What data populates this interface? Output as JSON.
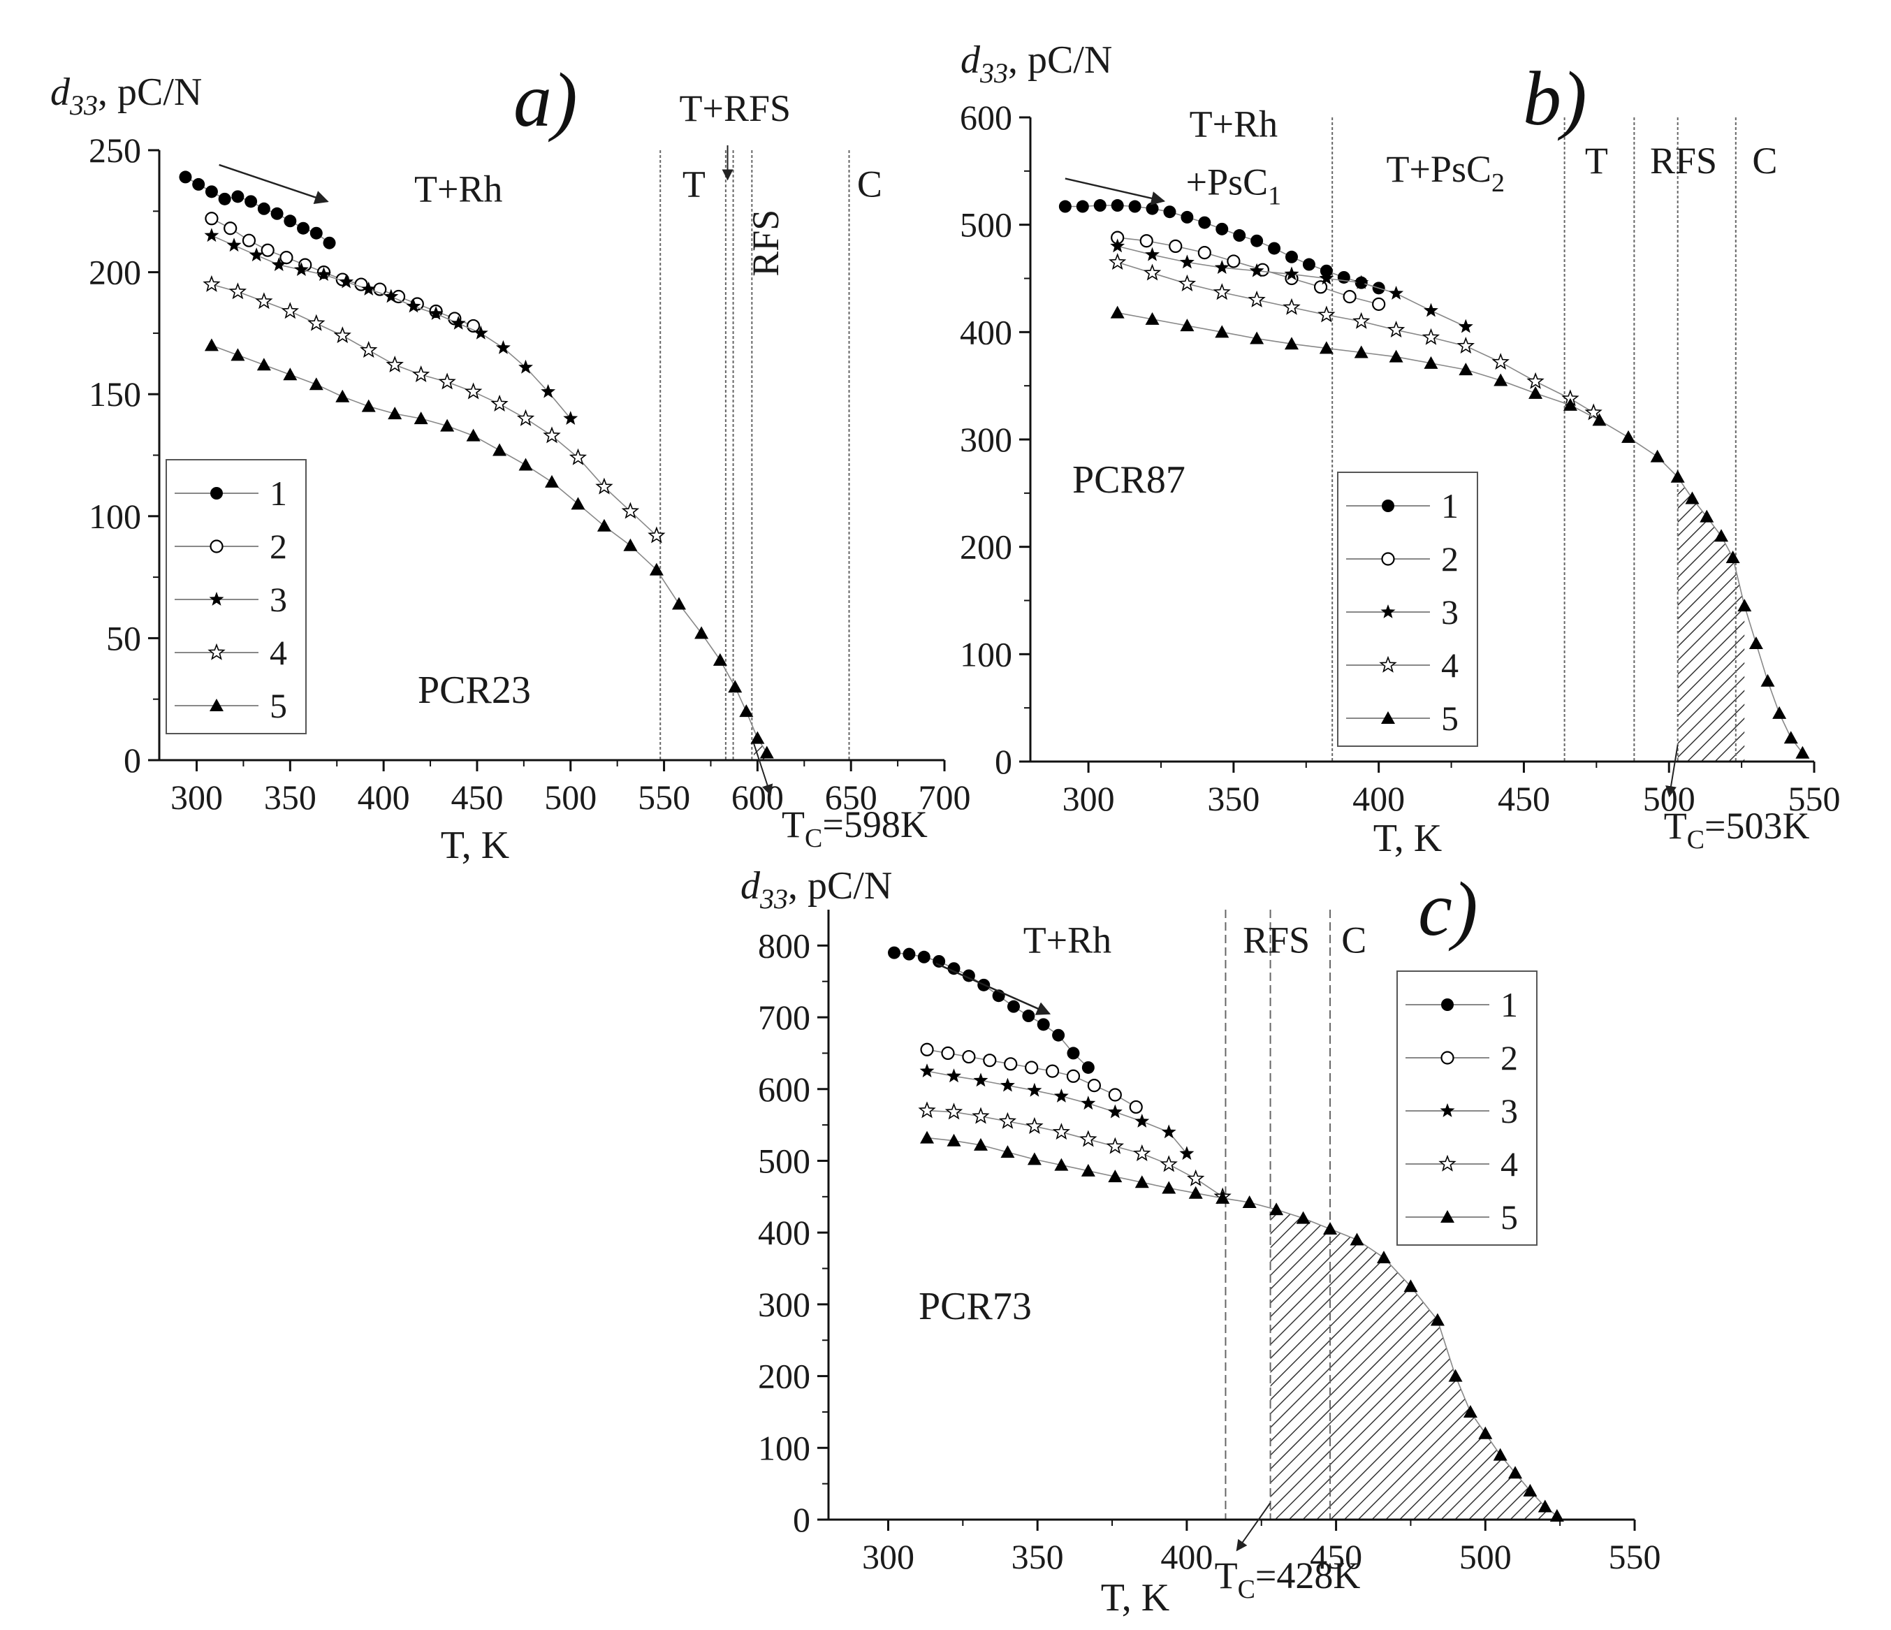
{
  "chart_data": [
    {
      "id": "a",
      "type": "scatter",
      "panel_label": "a)",
      "sample": "PCR23",
      "ylabel_sym": "d",
      "ylabel_sub": "33",
      "ylabel_unit": ", pC/N",
      "xlabel": "T, K",
      "xlim": [
        280,
        700
      ],
      "ylim": [
        0,
        250
      ],
      "xticks": [
        300,
        350,
        400,
        450,
        500,
        550,
        600,
        650,
        700
      ],
      "yticks": [
        0,
        50,
        100,
        150,
        200,
        250
      ],
      "phase_labels": [
        {
          "text": "T+Rh",
          "x": 440,
          "y": 229
        },
        {
          "text": "T",
          "x": 566,
          "y": 231
        },
        {
          "text": "T+RFS",
          "x": 588,
          "y": 262
        },
        {
          "text": "RFS",
          "x": 611,
          "y": 212,
          "rotated": true
        },
        {
          "text": "C",
          "x": 660,
          "y": 231
        }
      ],
      "phase_lines": [
        548,
        583,
        587,
        597,
        649
      ],
      "hatch": [
        598,
        612
      ],
      "tc_label": {
        "main": "T",
        "sub": "C",
        "rest": "=598K",
        "x": 598
      },
      "arrow": {
        "from": [
          312,
          244
        ],
        "to": [
          370,
          229
        ]
      },
      "legend_entries": [
        "1",
        "2",
        "3",
        "4",
        "5"
      ],
      "series": [
        {
          "name": "1",
          "marker": "circle-filled",
          "x": [
            294,
            301,
            308,
            315,
            322,
            329,
            336,
            343,
            350,
            357,
            364,
            371
          ],
          "y": [
            239,
            236,
            233,
            230,
            231,
            229,
            226,
            224,
            221,
            218,
            216,
            212
          ]
        },
        {
          "name": "2",
          "marker": "circle-open",
          "x": [
            308,
            318,
            328,
            338,
            348,
            358,
            368,
            378,
            388,
            398,
            408,
            418,
            428,
            438,
            448
          ],
          "y": [
            222,
            218,
            213,
            209,
            206,
            203,
            200,
            197,
            195,
            193,
            190,
            187,
            184,
            181,
            178
          ]
        },
        {
          "name": "3",
          "marker": "star-filled",
          "x": [
            308,
            320,
            332,
            344,
            356,
            368,
            380,
            392,
            404,
            416,
            428,
            440,
            452,
            464,
            476,
            488,
            500
          ],
          "y": [
            215,
            211,
            207,
            203,
            201,
            199,
            196,
            193,
            190,
            186,
            183,
            179,
            175,
            169,
            161,
            151,
            140
          ]
        },
        {
          "name": "4",
          "marker": "star-open",
          "x": [
            308,
            322,
            336,
            350,
            364,
            378,
            392,
            406,
            420,
            434,
            448,
            462,
            476,
            490,
            504,
            518,
            532,
            546
          ],
          "y": [
            195,
            192,
            188,
            184,
            179,
            174,
            168,
            162,
            158,
            155,
            151,
            146,
            140,
            133,
            124,
            112,
            102,
            92
          ]
        },
        {
          "name": "5",
          "marker": "triangle-filled",
          "x": [
            308,
            322,
            336,
            350,
            364,
            378,
            392,
            406,
            420,
            434,
            448,
            462,
            476,
            490,
            504,
            518,
            532,
            546,
            558,
            570,
            580,
            588,
            594,
            600,
            605
          ],
          "y": [
            170,
            166,
            162,
            158,
            154,
            149,
            145,
            142,
            140,
            137,
            133,
            127,
            121,
            114,
            105,
            96,
            88,
            78,
            64,
            52,
            41,
            30,
            20,
            9,
            3
          ]
        }
      ]
    },
    {
      "id": "b",
      "type": "scatter",
      "panel_label": "b)",
      "sample": "PCR87",
      "ylabel_sym": "d",
      "ylabel_sub": "33",
      "ylabel_unit": ", pC/N",
      "xlabel": "T, K",
      "xlim": [
        280,
        550
      ],
      "ylim": [
        0,
        600
      ],
      "xticks": [
        300,
        350,
        400,
        450,
        500,
        550
      ],
      "yticks": [
        0,
        100,
        200,
        300,
        400,
        500,
        600
      ],
      "phase_labels": [
        {
          "text": "T+Rh",
          "x": 350,
          "y": 582
        },
        {
          "text": "+PsC1",
          "x": 350,
          "y": 528,
          "main": "+PsC",
          "sub": "1"
        },
        {
          "text": "T+PsC2",
          "x": 423,
          "y": 540,
          "main": "T+PsC",
          "sub": "2"
        },
        {
          "text": "T",
          "x": 475,
          "y": 548
        },
        {
          "text": "RFS",
          "x": 505,
          "y": 548
        },
        {
          "text": "C",
          "x": 533,
          "y": 548
        }
      ],
      "phase_lines": [
        384,
        464,
        488,
        503,
        523
      ],
      "hatch": [
        503,
        528
      ],
      "tc_label": {
        "main": "T",
        "sub": "C",
        "rest": "=503K",
        "x": 503
      },
      "arrow": {
        "from": [
          292,
          543
        ],
        "to": [
          326,
          522
        ]
      },
      "legend_entries": [
        "1",
        "2",
        "3",
        "4",
        "5"
      ],
      "series": [
        {
          "name": "1",
          "marker": "circle-filled",
          "x": [
            292,
            298,
            304,
            310,
            316,
            322,
            328,
            334,
            340,
            346,
            352,
            358,
            364,
            370,
            376,
            382,
            388,
            394,
            400
          ],
          "y": [
            517,
            517,
            518,
            518,
            517,
            515,
            512,
            507,
            502,
            496,
            490,
            485,
            478,
            470,
            463,
            457,
            451,
            446,
            441
          ]
        },
        {
          "name": "2",
          "marker": "circle-open",
          "x": [
            310,
            320,
            330,
            340,
            350,
            360,
            370,
            380,
            390,
            400
          ],
          "y": [
            488,
            485,
            480,
            474,
            466,
            458,
            450,
            442,
            433,
            426
          ]
        },
        {
          "name": "3",
          "marker": "star-filled",
          "x": [
            310,
            322,
            334,
            346,
            358,
            370,
            382,
            394,
            406,
            418,
            430
          ],
          "y": [
            480,
            472,
            465,
            460,
            457,
            454,
            450,
            446,
            436,
            420,
            405
          ]
        },
        {
          "name": "4",
          "marker": "star-open",
          "x": [
            310,
            322,
            334,
            346,
            358,
            370,
            382,
            394,
            406,
            418,
            430,
            442,
            454,
            466,
            474
          ],
          "y": [
            465,
            455,
            445,
            437,
            430,
            423,
            416,
            410,
            402,
            395,
            387,
            372,
            354,
            338,
            325
          ]
        },
        {
          "name": "5",
          "marker": "triangle-filled",
          "x": [
            310,
            322,
            334,
            346,
            358,
            370,
            382,
            394,
            406,
            418,
            430,
            442,
            454,
            466,
            476,
            486,
            496,
            503,
            508,
            513,
            518,
            522,
            526,
            530,
            534,
            538,
            542,
            546
          ],
          "y": [
            418,
            412,
            406,
            400,
            394,
            389,
            385,
            381,
            377,
            371,
            365,
            355,
            343,
            332,
            318,
            302,
            284,
            265,
            245,
            228,
            210,
            190,
            145,
            110,
            75,
            45,
            22,
            8
          ]
        }
      ]
    },
    {
      "id": "c",
      "type": "scatter",
      "panel_label": "c)",
      "sample": "PCR73",
      "ylabel_sym": "d",
      "ylabel_sub": "33",
      "ylabel_unit": ", pC/N",
      "xlabel": "T, K",
      "xlim": [
        280,
        550
      ],
      "ylim": [
        0,
        850
      ],
      "xticks": [
        300,
        350,
        400,
        450,
        500,
        550
      ],
      "yticks": [
        0,
        100,
        200,
        300,
        400,
        500,
        600,
        700,
        800
      ],
      "phase_labels": [
        {
          "text": "T+Rh",
          "x": 360,
          "y": 790
        },
        {
          "text": "RFS",
          "x": 430,
          "y": 790
        },
        {
          "text": "C",
          "x": 456,
          "y": 790
        }
      ],
      "phase_lines": [
        413,
        428,
        448
      ],
      "hatch": [
        428,
        524
      ],
      "tc_label": {
        "main": "T",
        "sub": "C",
        "rest": "=428K",
        "x": 428
      },
      "arrow": {
        "from": [
          316,
          775
        ],
        "to": [
          354,
          705
        ]
      },
      "legend_entries": [
        "1",
        "2",
        "3",
        "4",
        "5"
      ],
      "series": [
        {
          "name": "1",
          "marker": "circle-filled",
          "x": [
            302,
            307,
            312,
            317,
            322,
            327,
            332,
            337,
            342,
            347,
            352,
            357,
            362,
            367
          ],
          "y": [
            790,
            788,
            784,
            778,
            768,
            758,
            745,
            730,
            715,
            702,
            690,
            675,
            650,
            630
          ]
        },
        {
          "name": "2",
          "marker": "circle-open",
          "x": [
            313,
            320,
            327,
            334,
            341,
            348,
            355,
            362,
            369,
            376,
            383
          ],
          "y": [
            655,
            650,
            645,
            640,
            635,
            630,
            625,
            618,
            605,
            592,
            575
          ]
        },
        {
          "name": "3",
          "marker": "star-filled",
          "x": [
            313,
            322,
            331,
            340,
            349,
            358,
            367,
            376,
            385,
            394,
            400
          ],
          "y": [
            625,
            618,
            612,
            605,
            598,
            590,
            580,
            568,
            555,
            540,
            510
          ]
        },
        {
          "name": "4",
          "marker": "star-open",
          "x": [
            313,
            322,
            331,
            340,
            349,
            358,
            367,
            376,
            385,
            394,
            403,
            412
          ],
          "y": [
            570,
            568,
            562,
            555,
            548,
            540,
            530,
            520,
            510,
            495,
            475,
            450
          ]
        },
        {
          "name": "5",
          "marker": "triangle-filled",
          "x": [
            313,
            322,
            331,
            340,
            349,
            358,
            367,
            376,
            385,
            394,
            403,
            412,
            421,
            430,
            439,
            448,
            457,
            466,
            475,
            484,
            490,
            495,
            500,
            505,
            510,
            515,
            520,
            524
          ],
          "y": [
            532,
            528,
            522,
            512,
            502,
            494,
            486,
            478,
            470,
            462,
            455,
            448,
            442,
            432,
            420,
            405,
            390,
            365,
            325,
            278,
            200,
            150,
            120,
            90,
            65,
            40,
            18,
            5
          ]
        }
      ]
    }
  ]
}
